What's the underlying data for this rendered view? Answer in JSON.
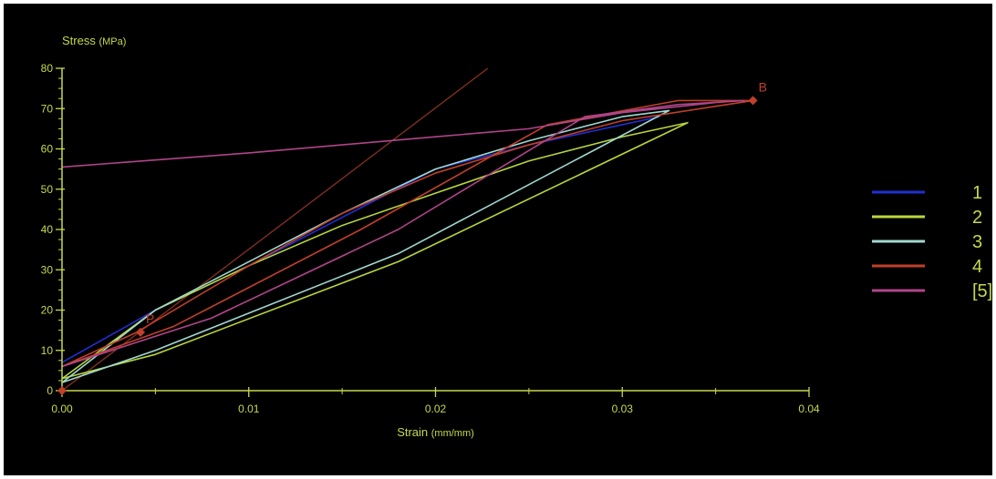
{
  "chart_data": {
    "type": "line",
    "xlabel": "Strain",
    "xlabel_unit": "(mm/mm)",
    "ylabel": "Stress",
    "ylabel_unit": "(MPa)",
    "xlim": [
      0,
      0.04
    ],
    "ylim": [
      0,
      80
    ],
    "x_ticks": [
      "0.00",
      "0.01",
      "0.02",
      "0.03",
      "0.04"
    ],
    "y_ticks": [
      "0",
      "10",
      "20",
      "30",
      "40",
      "50",
      "60",
      "70",
      "80"
    ],
    "grid": false,
    "legend_position": "right",
    "series": [
      {
        "name": "1",
        "color": "#1f2fd0",
        "points": [
          [
            0.0,
            7
          ],
          [
            0.005,
            20
          ],
          [
            0.01,
            31
          ],
          [
            0.015,
            43
          ],
          [
            0.02,
            55
          ],
          [
            0.025,
            61
          ],
          [
            0.03,
            66
          ],
          [
            0.032,
            68
          ]
        ]
      },
      {
        "name": "2",
        "color": "#b8d63a",
        "points": [
          [
            0.0,
            3
          ],
          [
            0.005,
            20
          ],
          [
            0.01,
            31
          ],
          [
            0.015,
            41
          ],
          [
            0.02,
            49
          ],
          [
            0.025,
            57
          ],
          [
            0.03,
            63
          ],
          [
            0.0335,
            66.5
          ],
          [
            0.018,
            32
          ],
          [
            0.005,
            9
          ],
          [
            0.0,
            3
          ]
        ]
      },
      {
        "name": "3",
        "color": "#a0d8d0",
        "points": [
          [
            0.0,
            2
          ],
          [
            0.005,
            20
          ],
          [
            0.01,
            32
          ],
          [
            0.015,
            44
          ],
          [
            0.02,
            55
          ],
          [
            0.025,
            62
          ],
          [
            0.03,
            68
          ],
          [
            0.0325,
            69.5
          ],
          [
            0.018,
            34
          ],
          [
            0.005,
            10
          ],
          [
            0.0,
            2
          ]
        ]
      },
      {
        "name": "4",
        "color": "#c0402a",
        "points": [
          [
            0.0,
            6
          ],
          [
            0.004,
            14.5
          ],
          [
            0.01,
            31
          ],
          [
            0.015,
            44
          ],
          [
            0.02,
            54
          ],
          [
            0.025,
            61
          ],
          [
            0.03,
            67
          ],
          [
            0.037,
            72
          ],
          [
            0.033,
            72
          ],
          [
            0.026,
            66
          ],
          [
            0.016,
            40
          ],
          [
            0.006,
            16
          ],
          [
            0.0,
            6
          ]
        ]
      },
      {
        "name": "[5]",
        "color": "#b0458a",
        "points": [
          [
            0.0,
            55.5
          ],
          [
            0.01,
            59
          ],
          [
            0.02,
            63
          ],
          [
            0.025,
            65
          ],
          [
            0.03,
            69
          ],
          [
            0.035,
            71.5
          ],
          [
            0.0365,
            72
          ],
          [
            0.033,
            71
          ],
          [
            0.028,
            68
          ],
          [
            0.018,
            40
          ],
          [
            0.008,
            18
          ],
          [
            0.0,
            6
          ]
        ]
      }
    ],
    "reference_line": {
      "color": "#8a3020",
      "points": [
        [
          0.0,
          0
        ],
        [
          0.0228,
          80
        ]
      ]
    },
    "markers": [
      {
        "label": "P",
        "x": 0.0042,
        "y": 14.5,
        "color": "#c0402a"
      },
      {
        "label": "B",
        "x": 0.037,
        "y": 72,
        "color": "#c0402a"
      },
      {
        "label": "",
        "x": 0.0,
        "y": 0,
        "color": "#c0402a"
      }
    ]
  },
  "axis_color": "#c8d84a"
}
